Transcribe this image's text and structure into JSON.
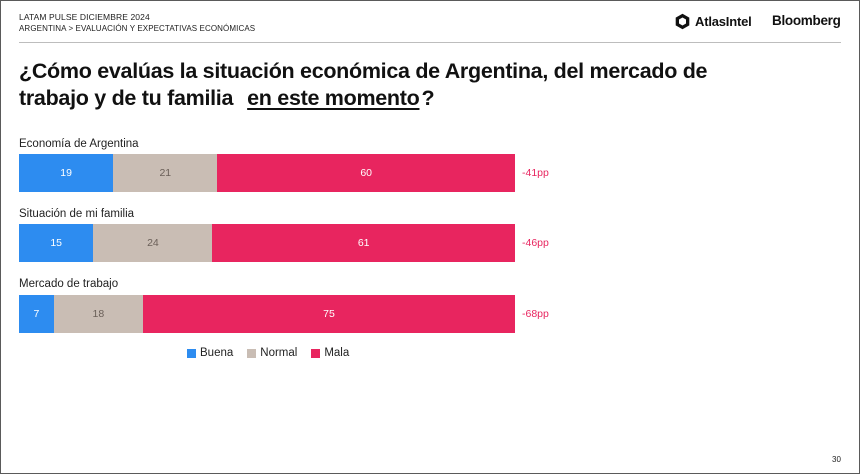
{
  "header": {
    "line1": "LATAM PULSE DICIEMBRE 2024",
    "line2": "ARGENTINA > EVALUACIÓN Y EXPECTATIVAS ECONÓMICAS",
    "brand1": "AtlasIntel",
    "brand2": "Bloomberg"
  },
  "title": {
    "line1": "¿Cómo evalúas la situación económica de Argentina, del mercado de",
    "line2": "trabajo y de tu familia",
    "highlight": "en este momento",
    "end": "?"
  },
  "page_number": "30",
  "colors": {
    "buena": "#2d8cf0",
    "normal": "#c9bdb4",
    "mala": "#e8255f",
    "net": "#e8255f"
  },
  "chart_data": {
    "type": "bar",
    "orientation": "horizontal",
    "stacked": true,
    "categories": [
      "Economía de Argentina",
      "Situación de mi familia",
      "Mercado de trabajo"
    ],
    "series": [
      {
        "name": "Buena",
        "values": [
          19,
          15,
          7
        ]
      },
      {
        "name": "Normal",
        "values": [
          21,
          24,
          18
        ]
      },
      {
        "name": "Mala",
        "values": [
          60,
          61,
          75
        ]
      }
    ],
    "net_labels": [
      "-41pp",
      "-46pp",
      "-68pp"
    ],
    "legend": [
      "Buena",
      "Normal",
      "Mala"
    ],
    "legend_position": "bottom-left",
    "grid": false
  }
}
